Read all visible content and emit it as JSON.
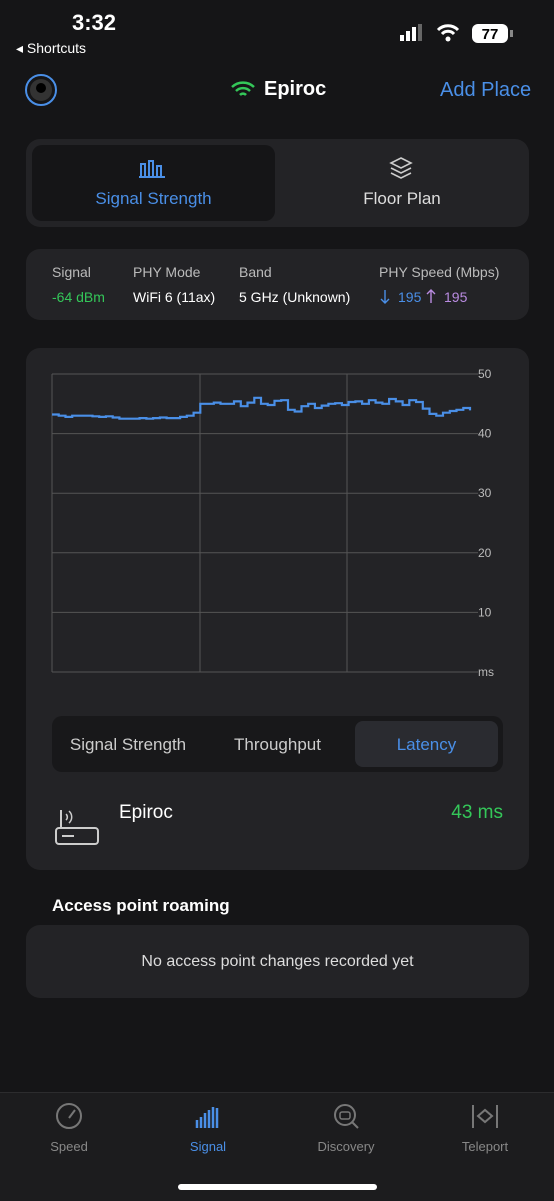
{
  "status_bar": {
    "time": "3:32",
    "back": "Shortcuts",
    "battery": "77"
  },
  "header": {
    "network": "Epiroc",
    "action": "Add Place"
  },
  "view_tabs": [
    "Signal Strength",
    "Floor Plan"
  ],
  "info": {
    "labels": [
      "Signal",
      "PHY Mode",
      "Band",
      "PHY Speed (Mbps)"
    ],
    "signal": "-64 dBm",
    "phy_mode": "WiFi 6 (11ax)",
    "band": "5 GHz (Unknown)",
    "speed_down": "195",
    "speed_up": "195"
  },
  "chart_data": {
    "type": "line",
    "color": "#4a8fe7",
    "values": [
      43.2,
      43.0,
      42.8,
      43.0,
      43.0,
      43.0,
      42.9,
      42.8,
      42.9,
      42.7,
      42.5,
      42.5,
      42.5,
      42.6,
      42.5,
      42.6,
      42.7,
      42.6,
      42.6,
      42.8,
      43.0,
      43.5,
      45.0,
      45.0,
      45.2,
      45.0,
      45.0,
      45.4,
      44.6,
      45.2,
      46.0,
      45.0,
      44.8,
      45.5,
      45.6,
      44.0,
      43.7,
      44.6,
      45.0,
      44.3,
      44.7,
      45.0,
      45.1,
      44.8,
      45.3,
      45.4,
      45.0,
      45.6,
      45.2,
      45.0,
      45.8,
      45.4,
      44.8,
      45.6,
      45.3,
      44.2,
      43.3,
      43.0,
      43.5,
      43.8,
      44.0,
      44.3,
      43.9
    ],
    "ylim": [
      0,
      50
    ],
    "yticks": [
      {
        "value": 0,
        "label": "ms"
      },
      10,
      20,
      30,
      40,
      50
    ],
    "grid": true
  },
  "metric_tabs": [
    "Signal Strength",
    "Throughput",
    "Latency"
  ],
  "result": {
    "name": "Epiroc",
    "value": "43 ms"
  },
  "roaming": {
    "title": "Access point roaming",
    "empty": "No access point changes recorded yet"
  },
  "tab_bar": [
    "Speed",
    "Signal",
    "Discovery",
    "Teleport"
  ]
}
